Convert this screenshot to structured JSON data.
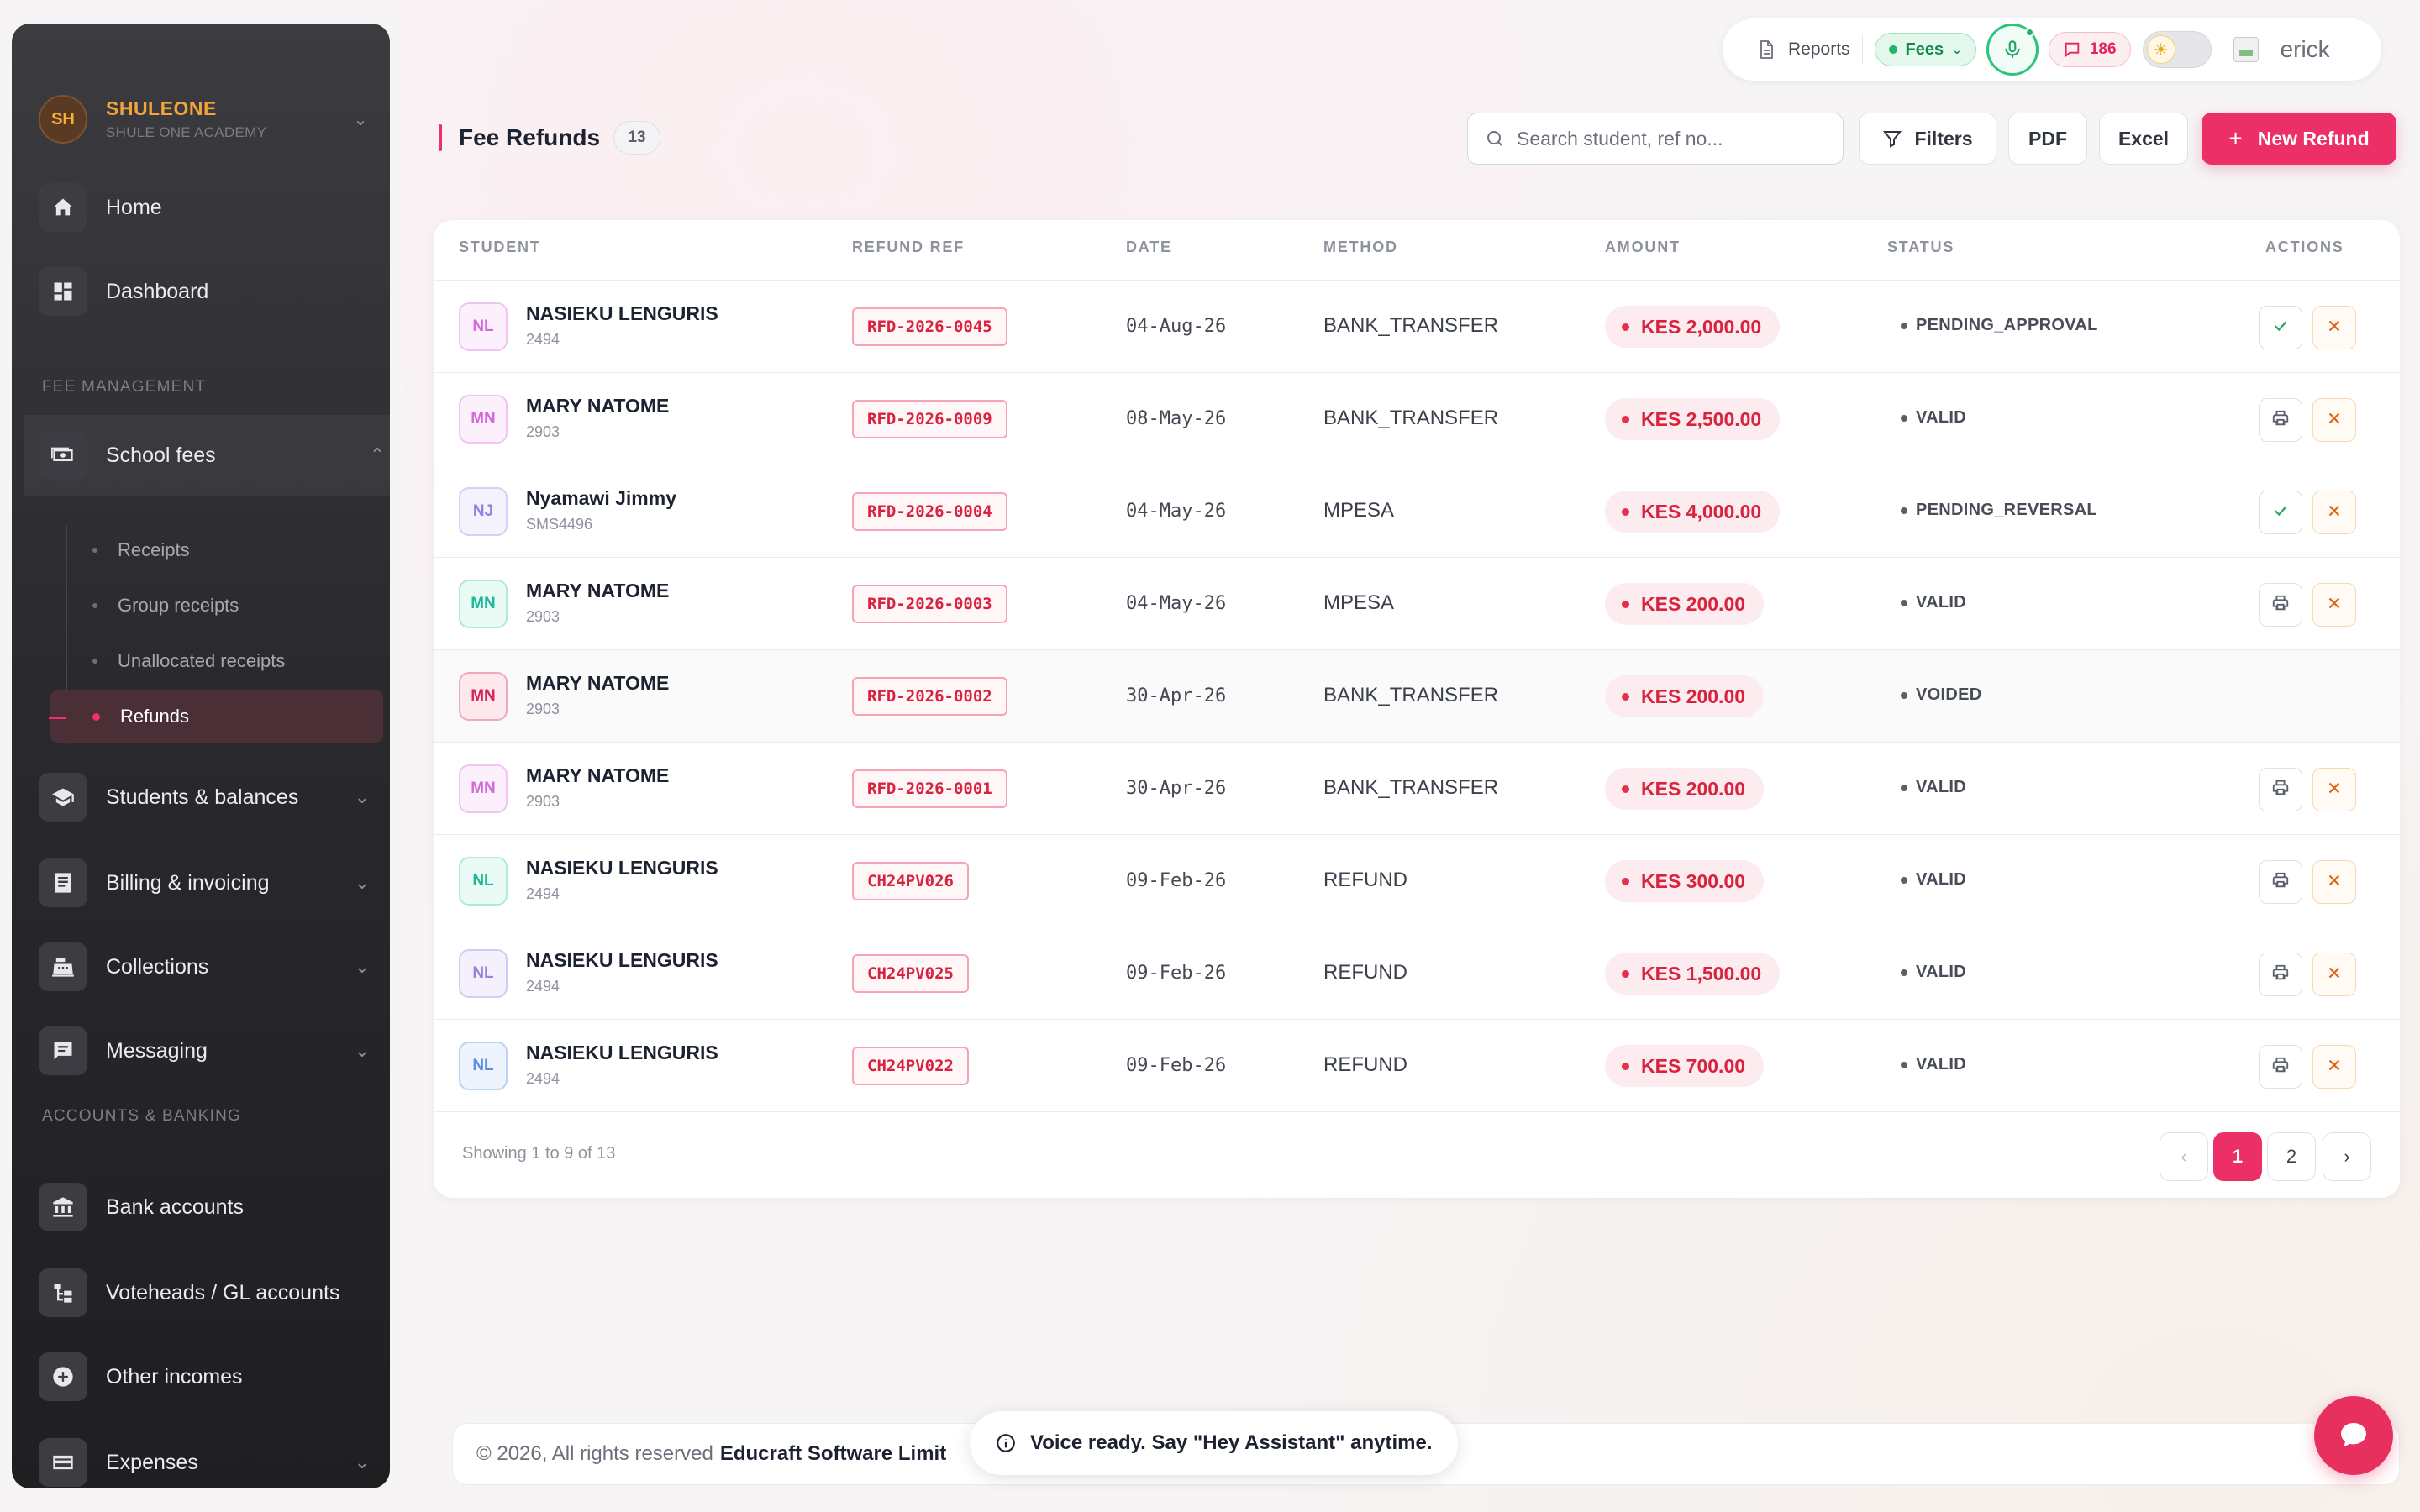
{
  "brand": {
    "initials": "SH",
    "name": "SHULEONE",
    "subtitle": "SHULE ONE ACADEMY"
  },
  "sidebar": {
    "top_items": [
      {
        "label": "Home",
        "icon": "home-icon"
      },
      {
        "label": "Dashboard",
        "icon": "dashboard-icon"
      }
    ],
    "sections": {
      "fee_management": "FEE MANAGEMENT",
      "accounts_banking": "ACCOUNTS & BANKING"
    },
    "school_fees": {
      "label": "School fees",
      "icon": "money-icon",
      "children": [
        "Receipts",
        "Group receipts",
        "Unallocated receipts",
        "Refunds"
      ],
      "active_child": "Refunds"
    },
    "fee_items": [
      {
        "label": "Students & balances",
        "icon": "graduation-cap-icon"
      },
      {
        "label": "Billing & invoicing",
        "icon": "invoice-icon"
      },
      {
        "label": "Collections",
        "icon": "cash-register-icon"
      },
      {
        "label": "Messaging",
        "icon": "message-icon"
      }
    ],
    "banking_items": [
      {
        "label": "Bank accounts",
        "icon": "bank-icon"
      },
      {
        "label": "Voteheads / GL accounts",
        "icon": "tree-icon"
      },
      {
        "label": "Other incomes",
        "icon": "plus-circle-icon"
      },
      {
        "label": "Expenses",
        "icon": "card-icon"
      }
    ]
  },
  "topbar": {
    "reports_label": "Reports",
    "fees_label": "Fees",
    "message_count": "186",
    "user_name": "erick"
  },
  "page": {
    "title": "Fee Refunds",
    "count": "13",
    "search_placeholder": "Search student, ref no...",
    "filters_label": "Filters",
    "pdf_label": "PDF",
    "excel_label": "Excel",
    "new_label": "New Refund"
  },
  "table": {
    "headers": [
      "STUDENT",
      "REFUND REF",
      "DATE",
      "METHOD",
      "AMOUNT",
      "STATUS",
      "ACTIONS"
    ],
    "rows": [
      {
        "initials": "NL",
        "name": "NASIEKU LENGURIS",
        "adm": "2494",
        "ref": "RFD-2026-0045",
        "date": "04-Aug-26",
        "method": "BANK_TRANSFER",
        "amount": "KES 2,000.00",
        "status": "PENDING_APPROVAL",
        "actions": "approve"
      },
      {
        "initials": "MN",
        "name": "MARY NATOME",
        "adm": "2903",
        "ref": "RFD-2026-0009",
        "date": "08-May-26",
        "method": "BANK_TRANSFER",
        "amount": "KES 2,500.00",
        "status": "VALID",
        "actions": "print"
      },
      {
        "initials": "NJ",
        "name": "Nyamawi Jimmy",
        "adm": "SMS4496",
        "ref": "RFD-2026-0004",
        "date": "04-May-26",
        "method": "MPESA",
        "amount": "KES 4,000.00",
        "status": "PENDING_REVERSAL",
        "actions": "approve"
      },
      {
        "initials": "MN",
        "name": "MARY NATOME",
        "adm": "2903",
        "ref": "RFD-2026-0003",
        "date": "04-May-26",
        "method": "MPESA",
        "amount": "KES 200.00",
        "status": "VALID",
        "actions": "print"
      },
      {
        "initials": "MN",
        "name": "MARY NATOME",
        "adm": "2903",
        "ref": "RFD-2026-0002",
        "date": "30-Apr-26",
        "method": "BANK_TRANSFER",
        "amount": "KES 200.00",
        "status": "VOIDED",
        "actions": "none"
      },
      {
        "initials": "MN",
        "name": "MARY NATOME",
        "adm": "2903",
        "ref": "RFD-2026-0001",
        "date": "30-Apr-26",
        "method": "BANK_TRANSFER",
        "amount": "KES 200.00",
        "status": "VALID",
        "actions": "print"
      },
      {
        "initials": "NL",
        "name": "NASIEKU LENGURIS",
        "adm": "2494",
        "ref": "CH24PV026",
        "date": "09-Feb-26",
        "method": "REFUND",
        "amount": "KES 300.00",
        "status": "VALID",
        "actions": "print"
      },
      {
        "initials": "NL",
        "name": "NASIEKU LENGURIS",
        "adm": "2494",
        "ref": "CH24PV025",
        "date": "09-Feb-26",
        "method": "REFUND",
        "amount": "KES 1,500.00",
        "status": "VALID",
        "actions": "print"
      },
      {
        "initials": "NL",
        "name": "NASIEKU LENGURIS",
        "adm": "2494",
        "ref": "CH24PV022",
        "date": "09-Feb-26",
        "method": "REFUND",
        "amount": "KES 700.00",
        "status": "VALID",
        "actions": "print"
      }
    ],
    "avatar_colors": [
      {
        "fg": "#d46ad8",
        "bg": "#fbf0fc",
        "border": "#f0c4f2"
      },
      {
        "fg": "#d46ad8",
        "bg": "#fbf0fc",
        "border": "#f0c4f2"
      },
      {
        "fg": "#8a86e0",
        "bg": "#f3f2fd",
        "border": "#d3d1f5"
      },
      {
        "fg": "#1fb89a",
        "bg": "#eafbf6",
        "border": "#aee9da"
      },
      {
        "fg": "#d6245c",
        "bg": "#fde8ee",
        "border": "#f3a7bd"
      },
      {
        "fg": "#d46ad8",
        "bg": "#fbf0fc",
        "border": "#f0c4f2"
      },
      {
        "fg": "#1fb89a",
        "bg": "#eafbf6",
        "border": "#aee9da"
      },
      {
        "fg": "#9a84d6",
        "bg": "#f4f1fc",
        "border": "#d5cbf2"
      },
      {
        "fg": "#5a8fe0",
        "bg": "#eef4fd",
        "border": "#bcd2f4"
      }
    ],
    "showing_text": "Showing 1 to 9 of 13",
    "pages": [
      "1",
      "2"
    ],
    "current_page": "1"
  },
  "footer": {
    "copyright": "© 2026, All rights reserved",
    "company": "Educraft Software Limit"
  },
  "toast": {
    "message": "Voice ready. Say \"Hey Assistant\" anytime."
  },
  "colors": {
    "accent": "#ec2f67",
    "brand_orange": "#f3a43a",
    "success": "#1bb765",
    "danger": "#d8233f"
  }
}
